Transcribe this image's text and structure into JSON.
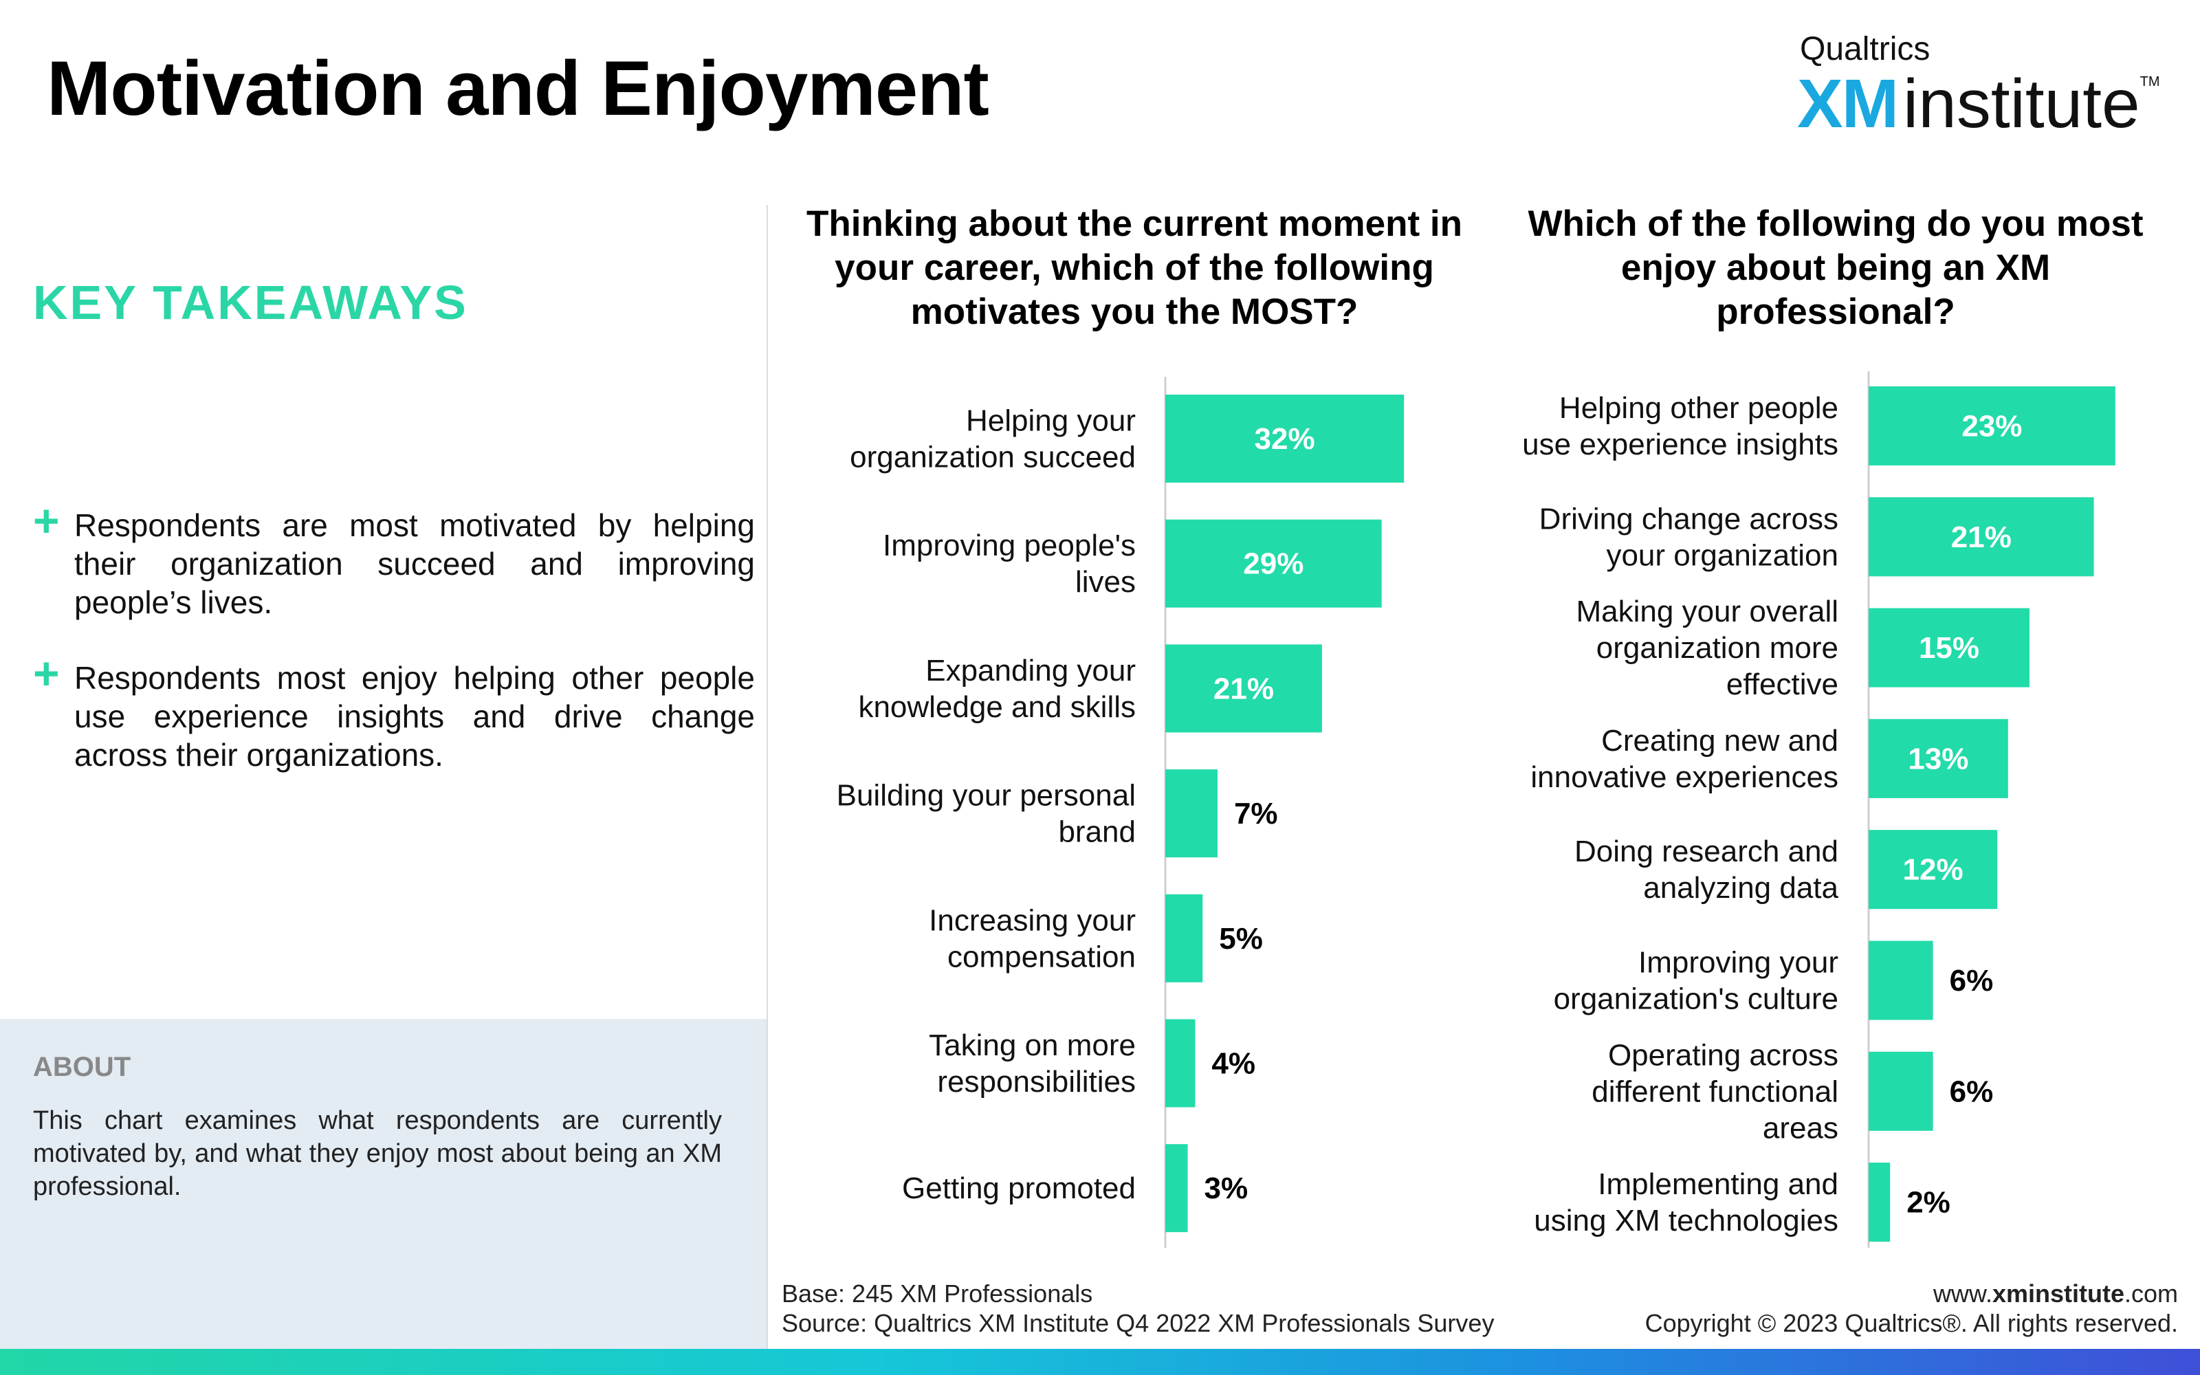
{
  "title": "Motivation and Enjoyment",
  "logo": {
    "top": "Qualtrics",
    "xm": "XM",
    "institute": "institute",
    "tm": "TM"
  },
  "key_takeaways": {
    "heading": "KEY TAKEAWAYS",
    "items": [
      "Respondents are most motivated by helping their organization succeed and improving people’s lives.",
      "Respondents most enjoy helping other people use experience insights and drive change across their organizations."
    ]
  },
  "about": {
    "heading": "ABOUT",
    "text": "This chart examines what respondents are currently motivated by, and what they enjoy most about being an XM professional."
  },
  "colors": {
    "bar": "#21dba9",
    "accent": "#2bd6a6",
    "about_bg": "#e3ebf3"
  },
  "chart_data": [
    {
      "type": "bar",
      "orientation": "horizontal",
      "title": "Thinking about the current moment in your career, which of the following motivates you the MOST?",
      "categories": [
        [
          "Helping your",
          "organization succeed"
        ],
        [
          "Improving people's",
          "lives"
        ],
        [
          "Expanding your",
          "knowledge and skills"
        ],
        [
          "Building your personal",
          "brand"
        ],
        [
          "Increasing your",
          "compensation"
        ],
        [
          "Taking on more",
          "responsibilities"
        ],
        [
          "Getting promoted"
        ]
      ],
      "values": [
        32,
        29,
        21,
        7,
        5,
        4,
        3
      ],
      "value_labels": [
        "32%",
        "29%",
        "21%",
        "7%",
        "5%",
        "4%",
        "3%"
      ],
      "unit": "%"
    },
    {
      "type": "bar",
      "orientation": "horizontal",
      "title": "Which of the following do you most enjoy about being an XM professional?",
      "categories": [
        [
          "Helping other people",
          "use experience insights"
        ],
        [
          "Driving change across",
          "your organization"
        ],
        [
          "Making your overall",
          "organization more",
          "effective"
        ],
        [
          "Creating new and",
          "innovative experiences"
        ],
        [
          "Doing research and",
          "analyzing data"
        ],
        [
          "Improving your",
          "organization's culture"
        ],
        [
          "Operating across",
          "different functional",
          "areas"
        ],
        [
          "Implementing and",
          "using XM technologies"
        ]
      ],
      "values": [
        23,
        21,
        15,
        13,
        12,
        6,
        6,
        2
      ],
      "value_labels": [
        "23%",
        "21%",
        "15%",
        "13%",
        "12%",
        "6%",
        "6%",
        "2%"
      ],
      "unit": "%"
    }
  ],
  "footer": {
    "base": "Base: 245 XM Professionals",
    "source": "Source: Qualtrics XM Institute Q4 2022 XM Professionals Survey",
    "site_prefix": "www.",
    "site_bold": "xminstitute",
    "site_suffix": ".com",
    "copyright": "Copyright © 2023 Qualtrics®. All rights reserved."
  }
}
